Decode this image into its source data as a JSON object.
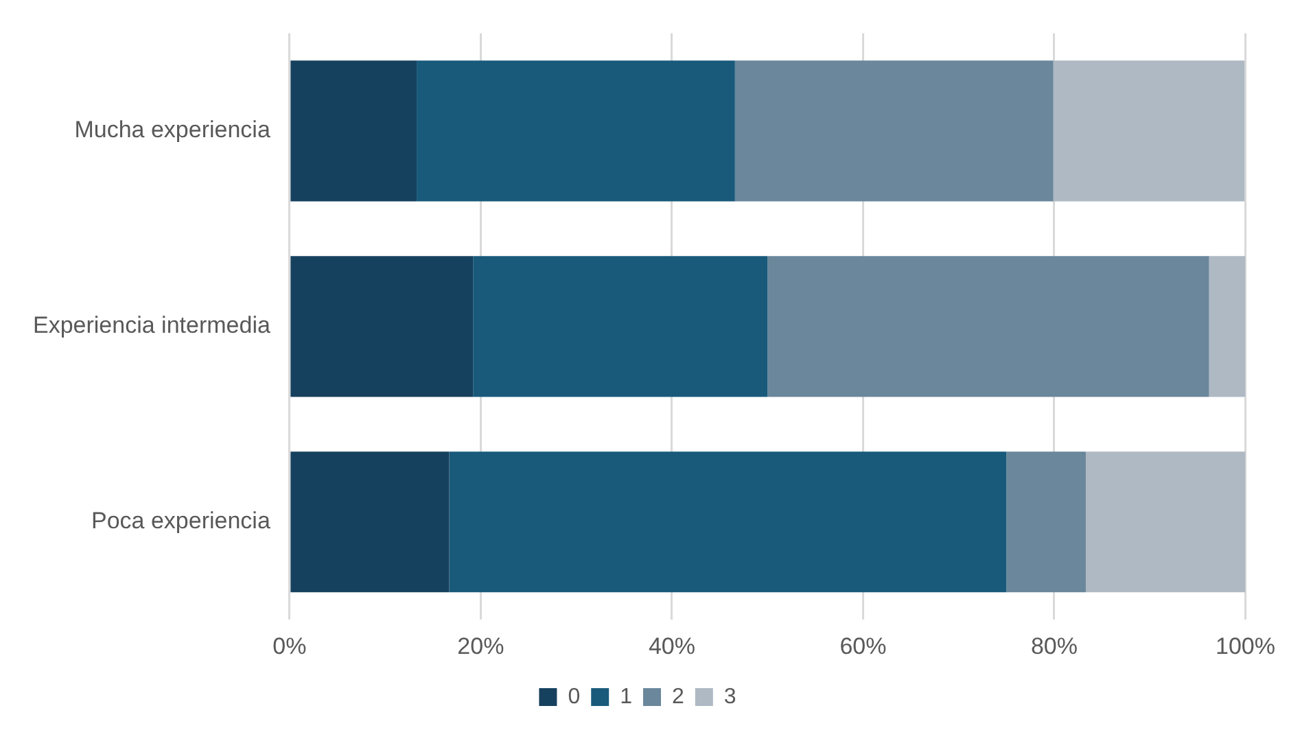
{
  "chart_data": {
    "type": "bar",
    "orientation": "horizontal",
    "stacked": true,
    "categories": [
      "Mucha experiencia",
      "Experiencia intermedia",
      "Poca experiencia"
    ],
    "series": [
      {
        "name": "0",
        "color": "#16415e",
        "values": [
          13.3,
          19.2,
          16.7
        ]
      },
      {
        "name": "1",
        "color": "#195a7b",
        "values": [
          33.3,
          30.8,
          58.3
        ]
      },
      {
        "name": "2",
        "color": "#6a879b",
        "values": [
          33.3,
          46.2,
          8.3
        ]
      },
      {
        "name": "3",
        "color": "#aeb9c4",
        "values": [
          20,
          3.8,
          16.7
        ]
      }
    ],
    "xlim": [
      0,
      100
    ],
    "xticks": [
      {
        "value": 0,
        "label": "0%"
      },
      {
        "value": 20,
        "label": "20%"
      },
      {
        "value": 40,
        "label": "40%"
      },
      {
        "value": 60,
        "label": "60%"
      },
      {
        "value": 80,
        "label": "80%"
      },
      {
        "value": 100,
        "label": "100%"
      }
    ],
    "grid": "x",
    "legend": "bottom"
  }
}
